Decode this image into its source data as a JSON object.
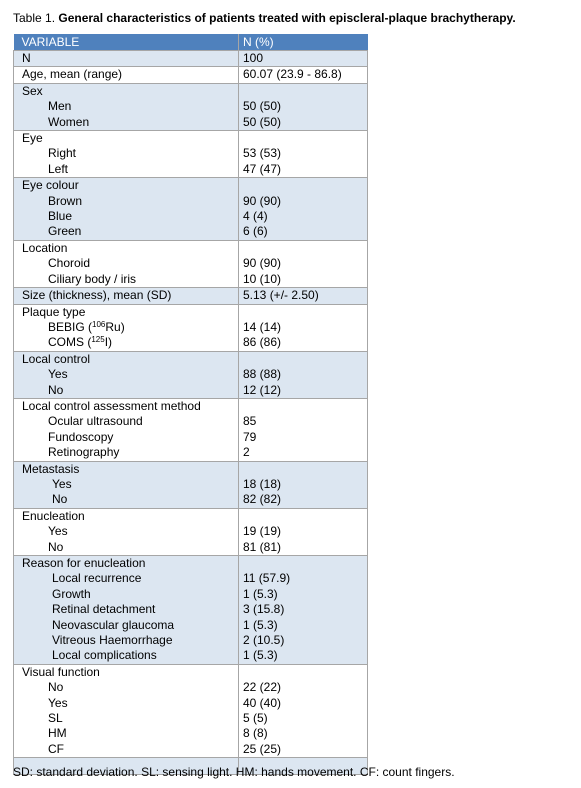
{
  "caption": {
    "label": "Table 1.",
    "title": "General characteristics of patients treated with episcleral-plaque brachytherapy."
  },
  "table": {
    "header": [
      "VARIABLE",
      "N (%)"
    ],
    "groups": [
      {
        "rows": [
          [
            "N",
            "100"
          ]
        ]
      },
      {
        "rows": [
          [
            "Age, mean (range)",
            "60.07 (23.9 - 86.8)"
          ]
        ]
      },
      {
        "rows": [
          [
            "Sex"
          ],
          [
            "Men",
            "50 (50)"
          ],
          [
            "Women",
            "50 (50)"
          ]
        ]
      },
      {
        "rows": [
          [
            "Eye"
          ],
          [
            "Right",
            "53 (53)"
          ],
          [
            "Left",
            "47 (47)"
          ]
        ]
      },
      {
        "rows": [
          [
            "Eye colour"
          ],
          [
            "Brown",
            "90 (90)"
          ],
          [
            "Blue",
            "4 (4)"
          ],
          [
            "Green",
            "6 (6)"
          ]
        ]
      },
      {
        "rows": [
          [
            "Location"
          ],
          [
            "Choroid",
            "90 (90)"
          ],
          [
            "Ciliary body / iris",
            "10 (10)"
          ]
        ]
      },
      {
        "rows": [
          [
            "Size (thickness), mean (SD)",
            "5.13 (+/- 2.50)"
          ]
        ]
      },
      {
        "rows": [
          [
            "Plaque type"
          ],
          [
            [
              "BEBIG (",
              "106",
              "Ru)"
            ],
            "14 (14)"
          ],
          [
            [
              "COMS (",
              "125",
              "I)"
            ],
            "86 (86)"
          ]
        ]
      },
      {
        "rows": [
          [
            "Local control"
          ],
          [
            "Yes",
            "88 (88)"
          ],
          [
            "No",
            "12 (12)"
          ]
        ]
      },
      {
        "rows": [
          [
            "Local control assessment method"
          ],
          [
            "Ocular ultrasound",
            "85"
          ],
          [
            "Fundoscopy",
            "79"
          ],
          [
            "Retinography",
            "2"
          ]
        ]
      },
      {
        "rows": [
          [
            "Metastasis"
          ],
          [
            "Yes",
            "18 (18)"
          ],
          [
            "No",
            "82 (82)"
          ]
        ]
      },
      {
        "rows": [
          [
            "Enucleation"
          ],
          [
            "Yes",
            "19 (19)"
          ],
          [
            "No",
            "81 (81)"
          ]
        ]
      },
      {
        "rows": [
          [
            "Reason for enucleation"
          ],
          [
            "Local recurrence",
            "11 (57.9)"
          ],
          [
            "Growth",
            "1 (5.3)"
          ],
          [
            "Retinal detachment",
            "3 (15.8)"
          ],
          [
            "Neovascular glaucoma",
            "1 (5.3)"
          ],
          [
            "Vitreous Haemorrhage",
            "2 (10.5)"
          ],
          [
            "Local complications",
            "1 (5.3)"
          ]
        ]
      },
      {
        "rows": [
          [
            "Visual function"
          ],
          [
            "No",
            "22 (22)"
          ],
          [
            "Yes",
            "40 (40)"
          ],
          [
            "SL",
            "5 (5)"
          ],
          [
            "HM",
            "8 (8)"
          ],
          [
            "CF",
            "25 (25)"
          ]
        ]
      }
    ]
  },
  "footnote": "SD: standard deviation. SL: sensing light. HM: hands movement. CF: count fingers."
}
